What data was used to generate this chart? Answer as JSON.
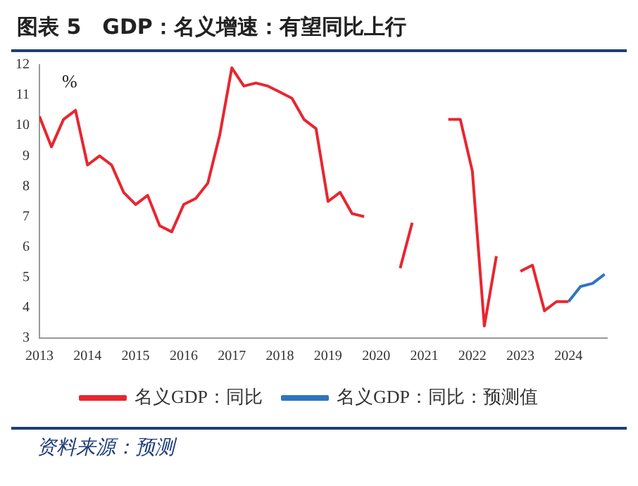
{
  "chart_data": {
    "type": "line",
    "title": "图表 5　GDP：名义增速：有望同比上行",
    "ylabel": "%",
    "x": [
      2013,
      2013.25,
      2013.5,
      2013.75,
      2014,
      2014.25,
      2014.5,
      2014.75,
      2015,
      2015.25,
      2015.5,
      2015.75,
      2016,
      2016.25,
      2016.5,
      2016.75,
      2017,
      2017.25,
      2017.5,
      2017.75,
      2018,
      2018.25,
      2018.5,
      2018.75,
      2019,
      2019.25,
      2019.5,
      2019.75,
      2020,
      2020.25,
      2020.5,
      2020.75,
      2021,
      2021.25,
      2021.5,
      2021.75,
      2022,
      2022.25,
      2022.5,
      2022.75,
      2023,
      2023.25,
      2023.5,
      2023.75,
      2024
    ],
    "series": [
      {
        "name": "名义GDP：同比",
        "color": "#e8262f",
        "values": [
          10.3,
          9.3,
          10.2,
          10.5,
          8.7,
          9.0,
          8.7,
          7.8,
          7.4,
          7.7,
          6.7,
          6.5,
          7.4,
          7.6,
          8.1,
          9.7,
          11.9,
          11.3,
          11.4,
          11.3,
          11.1,
          10.9,
          10.2,
          9.9,
          7.5,
          7.8,
          7.1,
          7.0,
          null,
          null,
          5.3,
          6.8,
          null,
          null,
          10.2,
          10.2,
          8.5,
          3.4,
          5.7,
          null,
          5.2,
          5.4,
          3.9,
          4.2,
          4.2
        ]
      },
      {
        "name": "名义GDP：同比：预测值",
        "color": "#2e75c0",
        "x": [
          2024,
          2024.25,
          2024.5,
          2024.75
        ],
        "values": [
          4.2,
          4.7,
          4.8,
          5.1
        ]
      }
    ],
    "xlim": [
      2013,
      2024.8
    ],
    "xticks": [
      2013,
      2014,
      2015,
      2016,
      2017,
      2018,
      2019,
      2020,
      2021,
      2022,
      2023,
      2024
    ],
    "ylim": [
      3,
      12
    ],
    "yticks": [
      3,
      4,
      5,
      6,
      7,
      8,
      9,
      10,
      11,
      12
    ],
    "grid": false,
    "legend": "bottom",
    "marker": "none",
    "line_style": "solid",
    "annotations": [
      "资料来源：预测"
    ]
  }
}
